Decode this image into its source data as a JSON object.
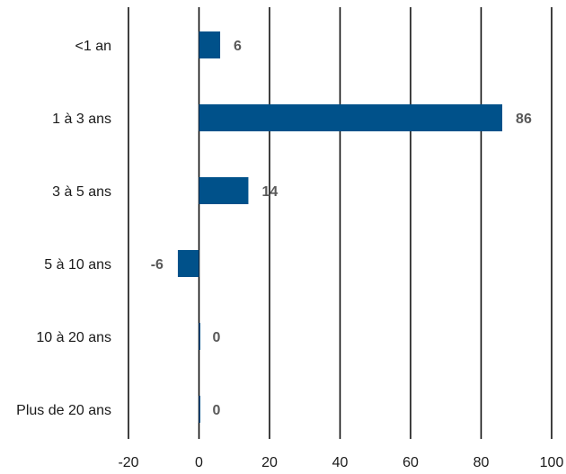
{
  "chart_data": {
    "type": "bar",
    "orientation": "horizontal",
    "categories": [
      "<1 an",
      "1 à 3 ans",
      "3 à 5 ans",
      "5 à 10 ans",
      "10 à 20 ans",
      "Plus de 20 ans"
    ],
    "values": [
      6,
      86,
      14,
      -6,
      0,
      0
    ],
    "data_labels": [
      "6",
      "86",
      "14",
      "-6",
      "0",
      "0"
    ],
    "xlim": [
      -20,
      100
    ],
    "xticks": [
      -20,
      0,
      20,
      40,
      60,
      80,
      100
    ],
    "xtick_labels": [
      "-20",
      "0",
      "20",
      "40",
      "60",
      "80",
      "100"
    ],
    "grid": "vertical",
    "bar_color": "#00518a",
    "title": "",
    "xlabel": "",
    "ylabel": ""
  }
}
